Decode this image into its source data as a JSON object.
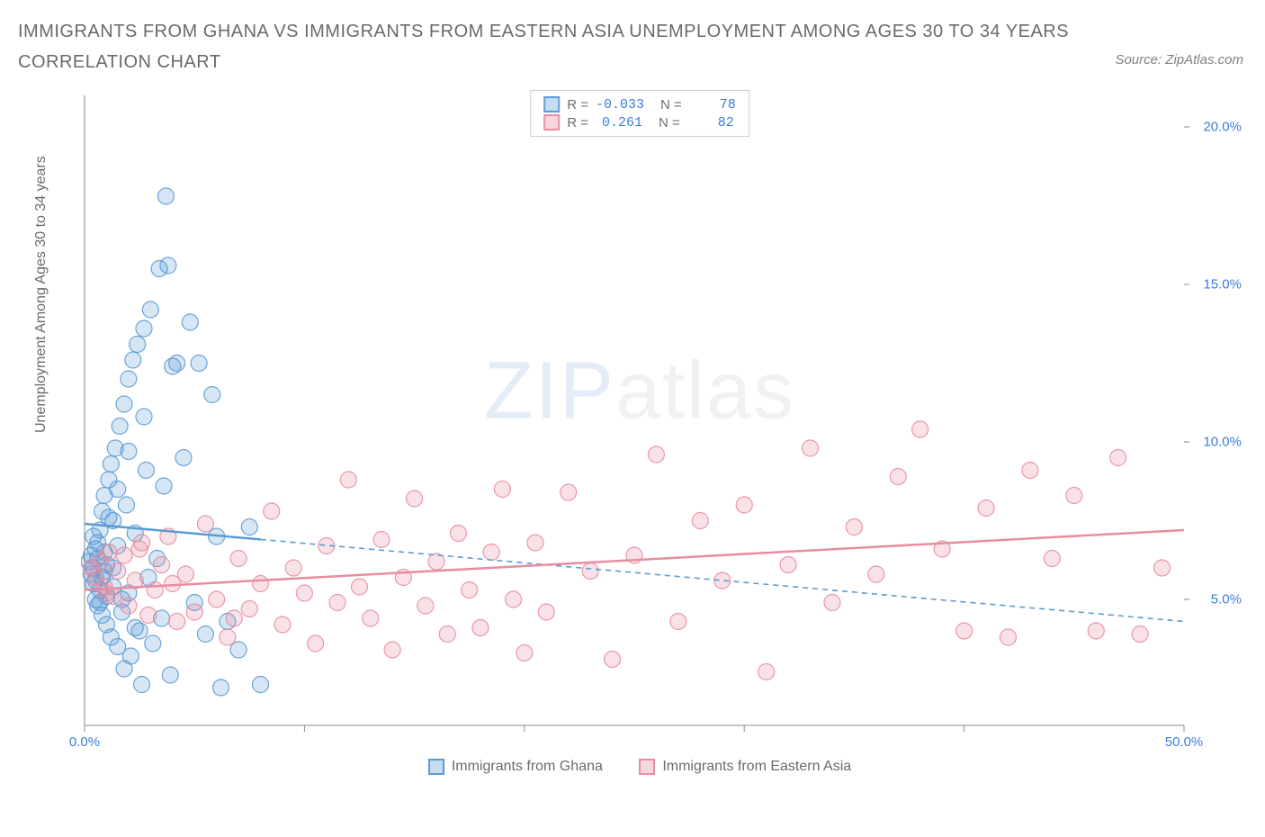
{
  "title": "IMMIGRANTS FROM GHANA VS IMMIGRANTS FROM EASTERN ASIA UNEMPLOYMENT AMONG AGES 30 TO 34 YEARS CORRELATION CHART",
  "source_label": "Source: ZipAtlas.com",
  "watermark": {
    "part1": "ZIP",
    "part2": "atlas"
  },
  "chart": {
    "type": "scatter",
    "ylabel": "Unemployment Among Ages 30 to 34 years",
    "xlim": [
      0,
      50
    ],
    "ylim": [
      1,
      21
    ],
    "xticks": [
      0,
      10,
      20,
      30,
      40,
      50
    ],
    "xticklabels": [
      "0.0%",
      "",
      "",
      "",
      "",
      "50.0%"
    ],
    "yticks": [
      5,
      10,
      15,
      20
    ],
    "yticklabels": [
      "5.0%",
      "10.0%",
      "15.0%",
      "20.0%"
    ],
    "background_color": "#ffffff",
    "axis_line_color": "#8a8a8a",
    "tick_color": "#8a8a8a",
    "ytick_label_color": "#3b7dd8",
    "xtick_label_color": "#3b7dd8",
    "marker_radius": 9,
    "marker_fill_opacity": 0.25,
    "marker_stroke_opacity": 0.9,
    "marker_stroke_width": 1.2,
    "trend_line_width": 2.5,
    "trend_dash_pattern": "6,5",
    "series": [
      {
        "name": "Immigrants from Ghana",
        "color": "#5b9bd5",
        "fill": "#5b9bd5",
        "R": "-0.033",
        "N": "78",
        "trend": {
          "x1": 0,
          "y1": 7.4,
          "x2": 50,
          "y2": 4.3,
          "solid_until_x": 8
        },
        "points": [
          [
            0.2,
            6.2
          ],
          [
            0.3,
            5.8
          ],
          [
            0.3,
            6.4
          ],
          [
            0.4,
            5.5
          ],
          [
            0.4,
            6.0
          ],
          [
            0.5,
            5.0
          ],
          [
            0.5,
            6.6
          ],
          [
            0.6,
            4.8
          ],
          [
            0.6,
            6.8
          ],
          [
            0.7,
            5.3
          ],
          [
            0.7,
            7.2
          ],
          [
            0.8,
            4.5
          ],
          [
            0.8,
            7.8
          ],
          [
            0.9,
            5.9
          ],
          [
            0.9,
            8.3
          ],
          [
            1.0,
            4.2
          ],
          [
            1.0,
            6.1
          ],
          [
            1.1,
            8.8
          ],
          [
            1.2,
            3.8
          ],
          [
            1.2,
            9.3
          ],
          [
            1.3,
            5.4
          ],
          [
            1.3,
            7.5
          ],
          [
            1.4,
            9.8
          ],
          [
            1.5,
            3.5
          ],
          [
            1.5,
            6.7
          ],
          [
            1.6,
            10.5
          ],
          [
            1.7,
            4.6
          ],
          [
            1.8,
            11.2
          ],
          [
            1.8,
            2.8
          ],
          [
            1.9,
            8.0
          ],
          [
            2.0,
            5.2
          ],
          [
            2.0,
            12.0
          ],
          [
            2.1,
            3.2
          ],
          [
            2.2,
            12.6
          ],
          [
            2.3,
            7.1
          ],
          [
            2.4,
            13.1
          ],
          [
            2.5,
            4.0
          ],
          [
            2.6,
            2.3
          ],
          [
            2.7,
            13.6
          ],
          [
            2.8,
            9.1
          ],
          [
            2.9,
            5.7
          ],
          [
            3.0,
            14.2
          ],
          [
            3.1,
            3.6
          ],
          [
            3.3,
            6.3
          ],
          [
            3.4,
            15.5
          ],
          [
            3.5,
            4.4
          ],
          [
            3.6,
            8.6
          ],
          [
            3.8,
            15.6
          ],
          [
            3.9,
            2.6
          ],
          [
            4.0,
            12.4
          ],
          [
            4.2,
            12.5
          ],
          [
            4.5,
            9.5
          ],
          [
            4.8,
            13.8
          ],
          [
            5.0,
            4.9
          ],
          [
            5.2,
            12.5
          ],
          [
            5.5,
            3.9
          ],
          [
            5.8,
            11.5
          ],
          [
            6.0,
            7.0
          ],
          [
            6.2,
            2.2
          ],
          [
            6.5,
            4.3
          ],
          [
            7.0,
            3.4
          ],
          [
            7.5,
            7.3
          ],
          [
            8.0,
            2.3
          ],
          [
            3.7,
            17.8
          ],
          [
            0.4,
            7.0
          ],
          [
            0.5,
            5.6
          ],
          [
            0.6,
            6.3
          ],
          [
            0.7,
            4.9
          ],
          [
            0.8,
            5.7
          ],
          [
            0.9,
            6.5
          ],
          [
            1.0,
            5.1
          ],
          [
            1.1,
            7.6
          ],
          [
            1.3,
            6.0
          ],
          [
            1.5,
            8.5
          ],
          [
            1.7,
            5.0
          ],
          [
            2.0,
            9.7
          ],
          [
            2.3,
            4.1
          ],
          [
            2.7,
            10.8
          ]
        ]
      },
      {
        "name": "Immigrants from Eastern Asia",
        "color": "#e88ca0",
        "fill": "#e88ca0",
        "R": "0.261",
        "N": "82",
        "trend": {
          "x1": 0,
          "y1": 5.3,
          "x2": 50,
          "y2": 7.2,
          "solid_until_x": 50
        },
        "points": [
          [
            0.3,
            6.0
          ],
          [
            0.5,
            5.7
          ],
          [
            0.7,
            6.2
          ],
          [
            0.9,
            5.4
          ],
          [
            1.1,
            6.5
          ],
          [
            1.3,
            5.1
          ],
          [
            1.5,
            5.9
          ],
          [
            1.8,
            6.4
          ],
          [
            2.0,
            4.8
          ],
          [
            2.3,
            5.6
          ],
          [
            2.6,
            6.8
          ],
          [
            2.9,
            4.5
          ],
          [
            3.2,
            5.3
          ],
          [
            3.5,
            6.1
          ],
          [
            3.8,
            7.0
          ],
          [
            4.2,
            4.3
          ],
          [
            4.6,
            5.8
          ],
          [
            5.0,
            4.6
          ],
          [
            5.5,
            7.4
          ],
          [
            6.0,
            5.0
          ],
          [
            6.5,
            3.8
          ],
          [
            7.0,
            6.3
          ],
          [
            7.5,
            4.7
          ],
          [
            8.0,
            5.5
          ],
          [
            8.5,
            7.8
          ],
          [
            9.0,
            4.2
          ],
          [
            9.5,
            6.0
          ],
          [
            10.0,
            5.2
          ],
          [
            10.5,
            3.6
          ],
          [
            11.0,
            6.7
          ],
          [
            11.5,
            4.9
          ],
          [
            12.0,
            8.8
          ],
          [
            12.5,
            5.4
          ],
          [
            13.0,
            4.4
          ],
          [
            13.5,
            6.9
          ],
          [
            14.0,
            3.4
          ],
          [
            14.5,
            5.7
          ],
          [
            15.0,
            8.2
          ],
          [
            15.5,
            4.8
          ],
          [
            16.0,
            6.2
          ],
          [
            16.5,
            3.9
          ],
          [
            17.0,
            7.1
          ],
          [
            17.5,
            5.3
          ],
          [
            18.0,
            4.1
          ],
          [
            18.5,
            6.5
          ],
          [
            19.0,
            8.5
          ],
          [
            19.5,
            5.0
          ],
          [
            20.0,
            3.3
          ],
          [
            20.5,
            6.8
          ],
          [
            21.0,
            4.6
          ],
          [
            22.0,
            8.4
          ],
          [
            23.0,
            5.9
          ],
          [
            24.0,
            3.1
          ],
          [
            25.0,
            6.4
          ],
          [
            26.0,
            9.6
          ],
          [
            27.0,
            4.3
          ],
          [
            28.0,
            7.5
          ],
          [
            29.0,
            5.6
          ],
          [
            30.0,
            8.0
          ],
          [
            31.0,
            2.7
          ],
          [
            32.0,
            6.1
          ],
          [
            33.0,
            9.8
          ],
          [
            34.0,
            4.9
          ],
          [
            35.0,
            7.3
          ],
          [
            36.0,
            5.8
          ],
          [
            37.0,
            8.9
          ],
          [
            38.0,
            10.4
          ],
          [
            39.0,
            6.6
          ],
          [
            40.0,
            4.0
          ],
          [
            41.0,
            7.9
          ],
          [
            42.0,
            3.8
          ],
          [
            43.0,
            9.1
          ],
          [
            44.0,
            6.3
          ],
          [
            45.0,
            8.3
          ],
          [
            46.0,
            4.0
          ],
          [
            47.0,
            9.5
          ],
          [
            48.0,
            3.9
          ],
          [
            49.0,
            6.0
          ],
          [
            1.0,
            5.2
          ],
          [
            2.5,
            6.6
          ],
          [
            4.0,
            5.5
          ],
          [
            6.8,
            4.4
          ]
        ]
      }
    ],
    "legend_bottom": [
      {
        "label": "Immigrants from Ghana",
        "color": "#5b9bd5"
      },
      {
        "label": "Immigrants from Eastern Asia",
        "color": "#e88ca0"
      }
    ],
    "legend_top": {
      "r_label": "R =",
      "n_label": "N ="
    }
  }
}
